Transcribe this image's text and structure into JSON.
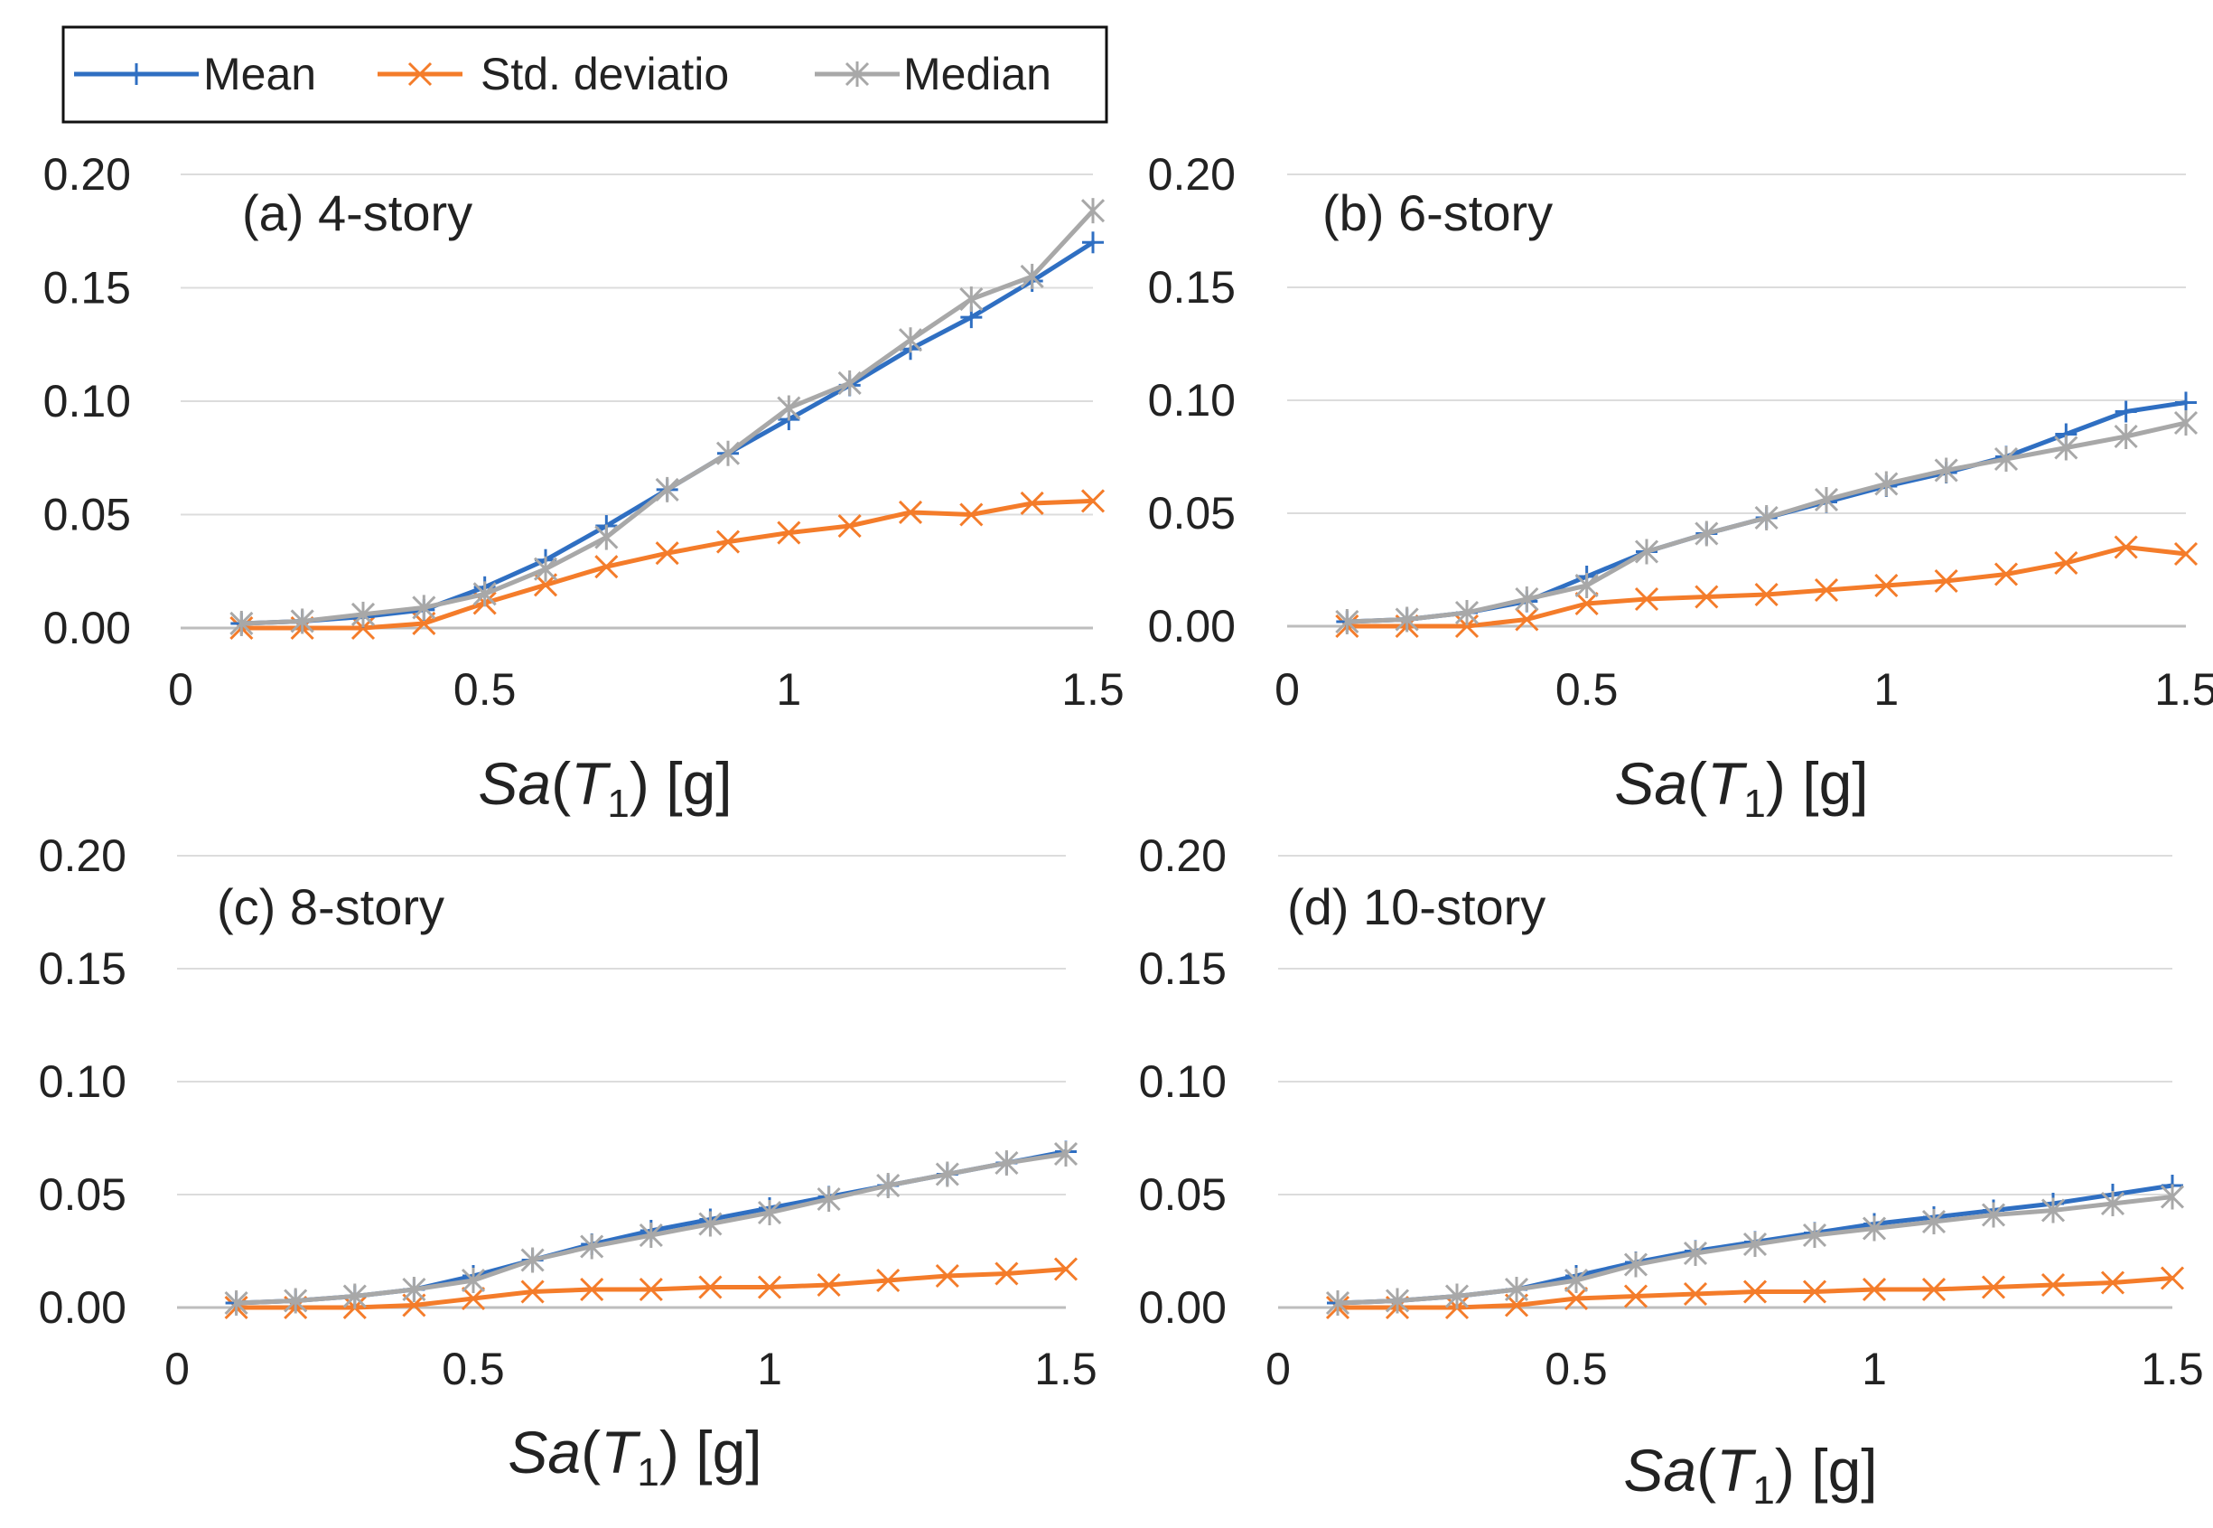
{
  "legend": {
    "entries": [
      {
        "label": "Mean",
        "color": "#2f6fc2",
        "marker": "plus"
      },
      {
        "label": "Std. deviatio",
        "color": "#f47c2a",
        "marker": "cross"
      },
      {
        "label": "Median",
        "color": "#a8a8a8",
        "marker": "asterisk"
      }
    ]
  },
  "xlabel": {
    "prefix": "Sa",
    "paren_open": "(",
    "T": "T",
    "subscript": "1",
    "paren_close": ")",
    "unit": " [g]"
  },
  "chart_data": [
    {
      "type": "line",
      "title": "(a) 4-story",
      "xlabel": "Sa(T1) [g]",
      "ylabel": "",
      "xlim": [
        0,
        1.5
      ],
      "ylim": [
        0,
        0.2
      ],
      "x_ticks": [
        "0",
        "0.5",
        "1",
        "1.5"
      ],
      "y_ticks": [
        "0.00",
        "0.05",
        "0.10",
        "0.15",
        "0.20"
      ],
      "x": [
        0.1,
        0.2,
        0.3,
        0.4,
        0.5,
        0.6,
        0.7,
        0.8,
        0.9,
        1.0,
        1.1,
        1.2,
        1.3,
        1.4,
        1.5
      ],
      "series": [
        {
          "name": "Mean",
          "values": [
            0.002,
            0.003,
            0.005,
            0.008,
            0.018,
            0.03,
            0.045,
            0.061,
            0.077,
            0.092,
            0.107,
            0.123,
            0.137,
            0.153,
            0.17
          ]
        },
        {
          "name": "Std. deviatio",
          "values": [
            0.0,
            0.0,
            0.0,
            0.002,
            0.011,
            0.019,
            0.027,
            0.033,
            0.038,
            0.042,
            0.045,
            0.051,
            0.05,
            0.055,
            0.056
          ]
        },
        {
          "name": "Median",
          "values": [
            0.002,
            0.003,
            0.006,
            0.009,
            0.015,
            0.026,
            0.04,
            0.061,
            0.077,
            0.097,
            0.108,
            0.127,
            0.145,
            0.155,
            0.184
          ]
        }
      ]
    },
    {
      "type": "line",
      "title": "(b) 6-story",
      "xlabel": "Sa(T1) [g]",
      "ylabel": "",
      "xlim": [
        0,
        1.5
      ],
      "ylim": [
        0,
        0.2
      ],
      "x_ticks": [
        "0",
        "0.5",
        "1",
        "1.5"
      ],
      "y_ticks": [
        "0.00",
        "0.05",
        "0.10",
        "0.15",
        "0.20"
      ],
      "x": [
        0.1,
        0.2,
        0.3,
        0.4,
        0.5,
        0.6,
        0.7,
        0.8,
        0.9,
        1.0,
        1.1,
        1.2,
        1.3,
        1.4,
        1.5
      ],
      "series": [
        {
          "name": "Mean",
          "values": [
            0.002,
            0.003,
            0.006,
            0.011,
            0.022,
            0.033,
            0.041,
            0.048,
            0.055,
            0.062,
            0.068,
            0.075,
            0.085,
            0.095,
            0.099
          ]
        },
        {
          "name": "Std. deviatio",
          "values": [
            0.0,
            0.0,
            0.0,
            0.003,
            0.01,
            0.012,
            0.013,
            0.014,
            0.016,
            0.018,
            0.02,
            0.023,
            0.028,
            0.035,
            0.032
          ]
        },
        {
          "name": "Median",
          "values": [
            0.002,
            0.003,
            0.006,
            0.012,
            0.018,
            0.033,
            0.041,
            0.048,
            0.056,
            0.063,
            0.069,
            0.074,
            0.079,
            0.084,
            0.09
          ]
        }
      ]
    },
    {
      "type": "line",
      "title": "(c) 8-story",
      "xlabel": "Sa(T1) [g]",
      "ylabel": "",
      "xlim": [
        0,
        1.5
      ],
      "ylim": [
        0,
        0.2
      ],
      "x_ticks": [
        "0",
        "0.5",
        "1",
        "1.5"
      ],
      "y_ticks": [
        "0.00",
        "0.05",
        "0.10",
        "0.15",
        "0.20"
      ],
      "x": [
        0.1,
        0.2,
        0.3,
        0.4,
        0.5,
        0.6,
        0.7,
        0.8,
        0.9,
        1.0,
        1.1,
        1.2,
        1.3,
        1.4,
        1.5
      ],
      "series": [
        {
          "name": "Mean",
          "values": [
            0.002,
            0.003,
            0.005,
            0.008,
            0.014,
            0.021,
            0.028,
            0.034,
            0.039,
            0.044,
            0.049,
            0.054,
            0.059,
            0.064,
            0.069
          ]
        },
        {
          "name": "Std. deviatio",
          "values": [
            0.0,
            0.0,
            0.0,
            0.001,
            0.004,
            0.007,
            0.008,
            0.008,
            0.009,
            0.009,
            0.01,
            0.012,
            0.014,
            0.015,
            0.017
          ]
        },
        {
          "name": "Median",
          "values": [
            0.002,
            0.003,
            0.005,
            0.008,
            0.012,
            0.021,
            0.027,
            0.032,
            0.037,
            0.042,
            0.048,
            0.054,
            0.059,
            0.064,
            0.068
          ]
        }
      ]
    },
    {
      "type": "line",
      "title": "(d) 10-story",
      "xlabel": "Sa(T1) [g]",
      "ylabel": "",
      "xlim": [
        0,
        1.5
      ],
      "ylim": [
        0,
        0.2
      ],
      "x_ticks": [
        "0",
        "0.5",
        "1",
        "1.5"
      ],
      "y_ticks": [
        "0.00",
        "0.05",
        "0.10",
        "0.15",
        "0.20"
      ],
      "x": [
        0.1,
        0.2,
        0.3,
        0.4,
        0.5,
        0.6,
        0.7,
        0.8,
        0.9,
        1.0,
        1.1,
        1.2,
        1.3,
        1.4,
        1.5
      ],
      "series": [
        {
          "name": "Mean",
          "values": [
            0.002,
            0.003,
            0.005,
            0.008,
            0.014,
            0.02,
            0.025,
            0.029,
            0.033,
            0.037,
            0.04,
            0.043,
            0.046,
            0.05,
            0.054
          ]
        },
        {
          "name": "Std. deviatio",
          "values": [
            0.0,
            0.0,
            0.0,
            0.001,
            0.004,
            0.005,
            0.006,
            0.007,
            0.007,
            0.008,
            0.008,
            0.009,
            0.01,
            0.011,
            0.013
          ]
        },
        {
          "name": "Median",
          "values": [
            0.002,
            0.003,
            0.005,
            0.008,
            0.012,
            0.019,
            0.024,
            0.028,
            0.032,
            0.035,
            0.038,
            0.041,
            0.043,
            0.046,
            0.049
          ]
        }
      ]
    }
  ]
}
